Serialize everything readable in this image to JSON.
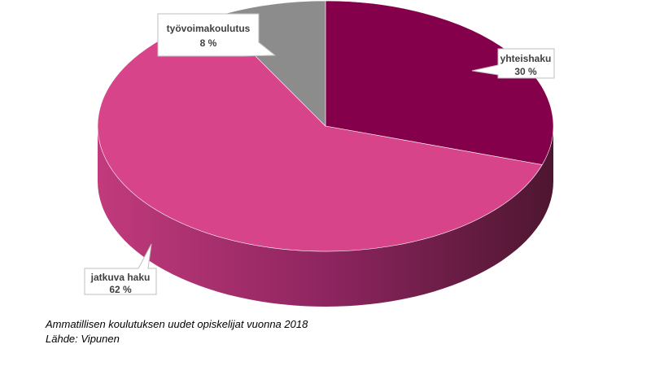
{
  "chart_data": {
    "type": "pie",
    "style": "3d",
    "slices": [
      {
        "label": "yhteishaku",
        "value": 30,
        "value_label": "30 %",
        "color": "#85004B"
      },
      {
        "label": "jatkuva haku",
        "value": 62,
        "value_label": "62 %",
        "color": "#D8448A"
      },
      {
        "label": "työvoimakoulutus",
        "value": 8,
        "value_label": "8 %",
        "color": "#8C8C8C"
      }
    ],
    "legend": "none"
  },
  "caption": {
    "line1": "Ammatillisen koulutuksen uudet opiskelijat vuonna 2018",
    "line2": "Lähde: Vipunen"
  }
}
